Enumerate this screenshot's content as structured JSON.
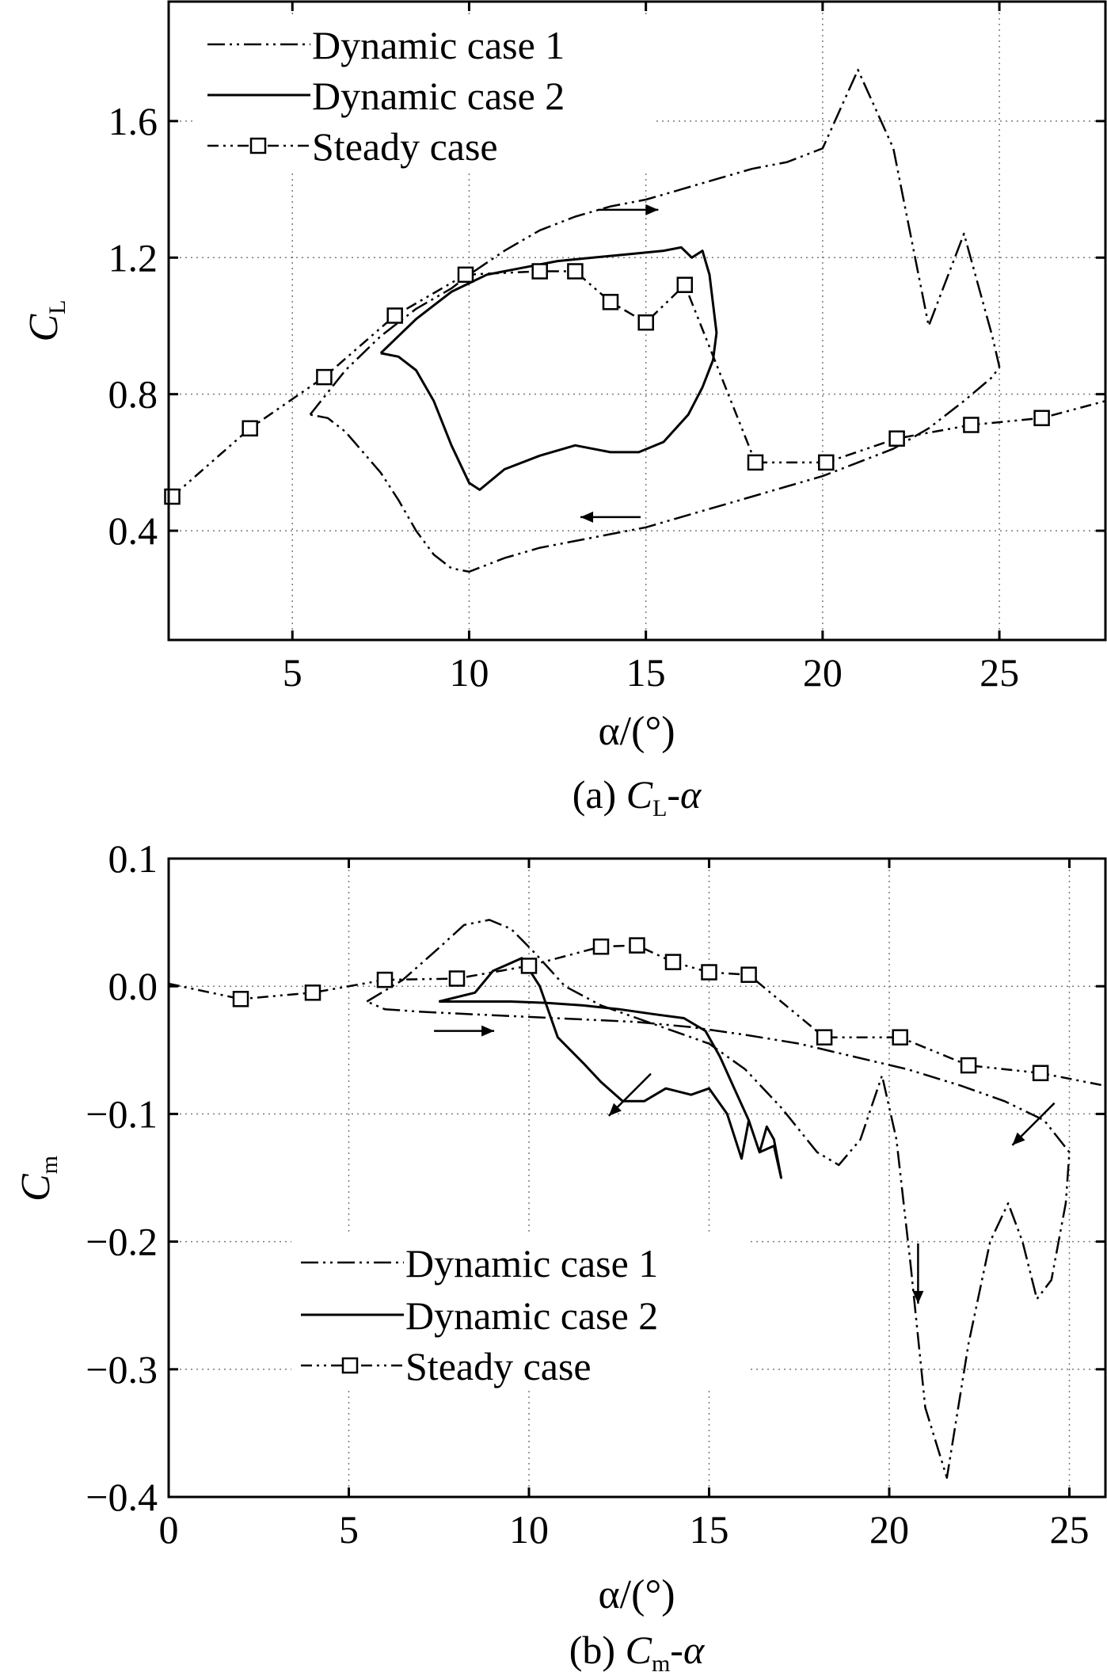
{
  "chart_data": [
    {
      "id": "a",
      "type": "line",
      "caption": "(a) C_L-α",
      "caption_parts": {
        "prefix": "(a) ",
        "var": "C",
        "sub": "L",
        "suffix": "-α"
      },
      "xlabel": "α/(°)",
      "ylabel": "C_L",
      "ylabel_parts": {
        "var": "C",
        "sub": "L"
      },
      "xlim": [
        1.5,
        28
      ],
      "ylim": [
        0.08,
        1.95
      ],
      "xticks": [
        5,
        10,
        15,
        20,
        25
      ],
      "yticks": [
        0.4,
        0.8,
        1.2,
        1.6
      ],
      "ytick_labels": [
        "0.4",
        "0.8",
        "1.2",
        "1.6"
      ],
      "xtick_labels": [
        "5",
        "10",
        "15",
        "20",
        "25"
      ],
      "grid": true,
      "legend_position": "top-left",
      "series": [
        {
          "name": "Dynamic case 1",
          "style": "dash-dot-dot",
          "x": [
            5.5,
            6.5,
            7.5,
            8.5,
            9.5,
            10,
            11,
            12,
            13,
            14,
            15,
            16,
            17,
            18,
            19,
            20,
            21,
            22,
            23,
            24,
            24.8,
            25,
            24.8,
            24,
            23,
            22,
            21,
            20,
            19,
            18,
            17,
            16,
            15,
            14,
            13,
            12,
            11,
            10,
            9.5,
            9,
            8.5,
            8,
            7.5,
            7,
            6.5,
            6,
            5.5
          ],
          "y": [
            0.74,
            0.87,
            0.97,
            1.05,
            1.11,
            1.15,
            1.22,
            1.28,
            1.32,
            1.35,
            1.37,
            1.4,
            1.43,
            1.46,
            1.48,
            1.52,
            1.75,
            1.52,
            1.0,
            1.27,
            0.97,
            0.88,
            0.85,
            0.78,
            0.7,
            0.64,
            0.6,
            0.56,
            0.53,
            0.5,
            0.47,
            0.44,
            0.41,
            0.39,
            0.37,
            0.35,
            0.32,
            0.28,
            0.29,
            0.33,
            0.4,
            0.49,
            0.57,
            0.63,
            0.69,
            0.73,
            0.74
          ]
        },
        {
          "name": "Dynamic case 2",
          "style": "solid",
          "x": [
            7.5,
            8.5,
            9.5,
            10.5,
            11.5,
            12.5,
            13.5,
            14.5,
            15.5,
            16,
            16.3,
            16.6,
            16.8,
            17,
            16.9,
            16.6,
            16.2,
            15.5,
            14.8,
            14,
            13,
            12,
            11,
            10.3,
            10,
            9.5,
            9,
            8.5,
            8,
            7.5
          ],
          "y": [
            0.92,
            1.02,
            1.1,
            1.15,
            1.17,
            1.19,
            1.2,
            1.21,
            1.22,
            1.23,
            1.2,
            1.22,
            1.15,
            0.98,
            0.9,
            0.82,
            0.74,
            0.66,
            0.63,
            0.63,
            0.65,
            0.62,
            0.58,
            0.52,
            0.54,
            0.65,
            0.78,
            0.87,
            0.91,
            0.92
          ]
        },
        {
          "name": "Steady case",
          "style": "dash-dot-dot-square",
          "x": [
            1.6,
            3.8,
            5.9,
            7.9,
            9.9,
            12.0,
            13.0,
            14.0,
            15.0,
            16.1,
            18.1,
            20.1,
            22.1,
            24.2,
            26.2,
            28.0
          ],
          "y": [
            0.5,
            0.7,
            0.85,
            1.03,
            1.15,
            1.16,
            1.16,
            1.07,
            1.01,
            1.12,
            0.6,
            0.6,
            0.67,
            0.71,
            0.73,
            0.78
          ],
          "markers": [
            true,
            true,
            true,
            true,
            true,
            true,
            true,
            true,
            true,
            true,
            true,
            true,
            true,
            true,
            true,
            false
          ]
        }
      ],
      "arrows": [
        {
          "x": 14.5,
          "y": 1.34,
          "direction": "right"
        },
        {
          "x": 14.0,
          "y": 0.44,
          "direction": "left"
        }
      ]
    },
    {
      "id": "b",
      "type": "line",
      "caption": "(b) C_m-α",
      "caption_parts": {
        "prefix": "(b) ",
        "var": "C",
        "sub": "m",
        "suffix": "-α"
      },
      "xlabel": "α/(°)",
      "ylabel": "C_m",
      "ylabel_parts": {
        "var": "C",
        "sub": "m"
      },
      "xlim": [
        0,
        26
      ],
      "ylim": [
        -0.4,
        0.1
      ],
      "xticks": [
        0,
        5,
        10,
        15,
        20,
        25
      ],
      "yticks": [
        -0.4,
        -0.3,
        -0.2,
        -0.1,
        0.0,
        0.1
      ],
      "ytick_labels": [
        "−0.4",
        "−0.3",
        "−0.2",
        "−0.1",
        "0.0",
        "0.1"
      ],
      "xtick_labels": [
        "0",
        "5",
        "10",
        "15",
        "20",
        "25"
      ],
      "grid": true,
      "legend_position": "bottom-left",
      "series": [
        {
          "name": "Dynamic case 1",
          "style": "dash-dot-dot",
          "x": [
            5.5,
            6.5,
            7.5,
            8.2,
            8.9,
            9.5,
            10.2,
            11,
            12,
            13,
            14,
            15,
            16,
            17,
            18,
            18.6,
            19.2,
            19.8,
            20.2,
            20.6,
            21,
            21.6,
            22.2,
            22.8,
            23.3,
            23.7,
            24.1,
            24.5,
            24.9,
            25,
            24.3,
            23.2,
            22,
            20.5,
            19,
            17.5,
            16,
            14.5,
            13,
            11.5,
            10,
            8.5,
            7,
            6,
            5.5
          ],
          "y": [
            -0.012,
            0.005,
            0.03,
            0.048,
            0.052,
            0.045,
            0.025,
            0.0,
            -0.015,
            -0.025,
            -0.035,
            -0.045,
            -0.065,
            -0.095,
            -0.13,
            -0.14,
            -0.12,
            -0.07,
            -0.12,
            -0.22,
            -0.33,
            -0.385,
            -0.28,
            -0.2,
            -0.17,
            -0.2,
            -0.245,
            -0.23,
            -0.17,
            -0.13,
            -0.105,
            -0.09,
            -0.078,
            -0.065,
            -0.055,
            -0.045,
            -0.038,
            -0.032,
            -0.028,
            -0.026,
            -0.024,
            -0.022,
            -0.02,
            -0.018,
            -0.012
          ]
        },
        {
          "name": "Dynamic case 2",
          "style": "solid",
          "x": [
            7.5,
            8.5,
            9,
            9.8,
            10.3,
            10.8,
            11.5,
            12,
            12.6,
            13.2,
            13.8,
            14.5,
            15.0,
            15.5,
            15.9,
            16.1,
            16.4,
            16.6,
            16.8,
            17.0,
            16.8,
            16.4,
            16.1,
            15.7,
            15.3,
            14.9,
            14.3,
            13.5,
            12.5,
            11.5,
            10.5,
            9.5,
            8.5,
            7.5
          ],
          "y": [
            -0.012,
            -0.005,
            0.012,
            0.022,
            0.0,
            -0.04,
            -0.06,
            -0.075,
            -0.09,
            -0.09,
            -0.08,
            -0.085,
            -0.08,
            -0.1,
            -0.135,
            -0.105,
            -0.13,
            -0.11,
            -0.12,
            -0.15,
            -0.125,
            -0.13,
            -0.105,
            -0.08,
            -0.055,
            -0.035,
            -0.025,
            -0.022,
            -0.018,
            -0.015,
            -0.013,
            -0.012,
            -0.012,
            -0.012
          ]
        },
        {
          "name": "Steady case",
          "style": "dash-dot-dot-square",
          "x": [
            0,
            2,
            4,
            6,
            8,
            10,
            12,
            13,
            14,
            15,
            16.1,
            18.2,
            20.3,
            22.2,
            24.2,
            26
          ],
          "y": [
            0.002,
            -0.01,
            -0.005,
            0.005,
            0.006,
            0.016,
            0.031,
            0.032,
            0.019,
            0.011,
            0.009,
            -0.04,
            -0.04,
            -0.062,
            -0.068,
            -0.078
          ],
          "markers": [
            false,
            true,
            true,
            true,
            true,
            true,
            true,
            true,
            true,
            true,
            true,
            true,
            true,
            true,
            true,
            false
          ]
        }
      ],
      "arrows": [
        {
          "x": 8.2,
          "y": -0.035,
          "direction": "right"
        },
        {
          "x": 12.8,
          "y": -0.085,
          "direction": "down-left"
        },
        {
          "x": 20.8,
          "y": -0.225,
          "direction": "down"
        },
        {
          "x": 24.0,
          "y": -0.108,
          "direction": "down-left"
        }
      ]
    }
  ]
}
